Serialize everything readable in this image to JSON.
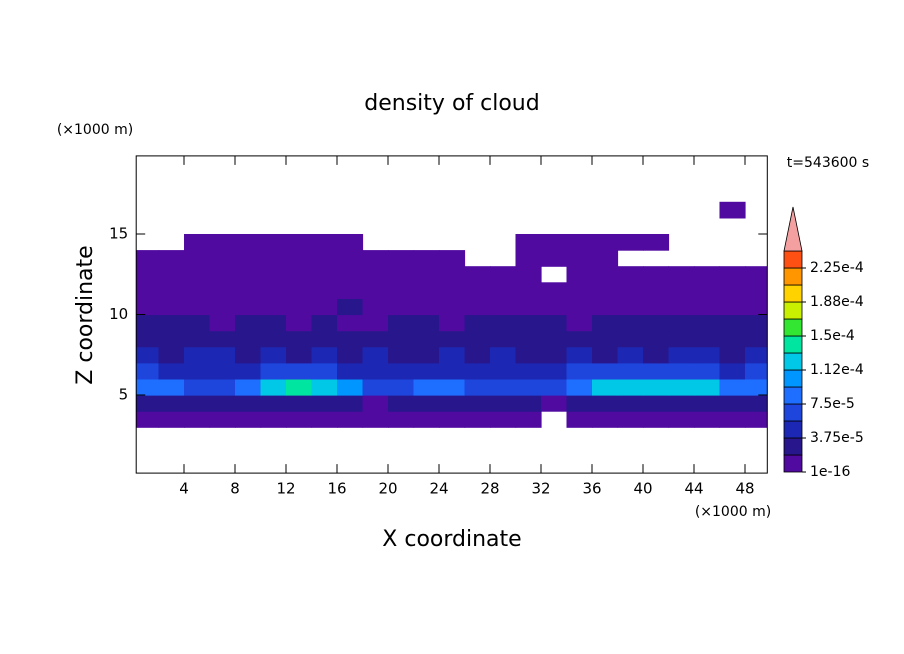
{
  "chart_data": {
    "type": "contour",
    "title": "density of cloud",
    "x_label": "X coordinate",
    "y_label": "Z coordinate",
    "x_unit": "(×1000 m)",
    "y_unit": "(×1000 m)",
    "annotation": "t=543600 s",
    "xlim": [
      0.25,
      49.75
    ],
    "ylim": [
      0.15,
      19.85
    ],
    "xticks": [
      4,
      8,
      12,
      16,
      20,
      24,
      28,
      32,
      36,
      40,
      44,
      48
    ],
    "yticks": [
      5,
      10,
      15
    ],
    "x": [
      1,
      3,
      5,
      7,
      9,
      11,
      13,
      15,
      17,
      19,
      21,
      23,
      25,
      27,
      29,
      31,
      33,
      35,
      37,
      39,
      41,
      43,
      45,
      47,
      49
    ],
    "y": [
      3.5,
      4.5,
      5.5,
      6.5,
      7.5,
      8.5,
      9.5,
      10.5,
      11.5,
      12.5,
      13.5,
      14.5,
      15.5,
      16.5
    ],
    "z": [
      [
        1e-05,
        1e-05,
        1e-05,
        1e-05,
        1e-05,
        1e-05,
        1e-05,
        1e-05,
        1e-05,
        1e-05,
        1e-05,
        1e-05,
        1e-05,
        1e-05,
        1e-05,
        1e-05,
        null,
        1e-05,
        1e-05,
        1e-05,
        1e-05,
        1e-05,
        1e-05,
        1e-05,
        1e-05
      ],
      [
        3e-05,
        3e-05,
        3e-05,
        2.5e-05,
        3e-05,
        3e-05,
        3e-05,
        3e-05,
        2.5e-05,
        1.5e-05,
        2.5e-05,
        3e-05,
        3e-05,
        3e-05,
        2.5e-05,
        2e-05,
        1.5e-05,
        3e-05,
        3e-05,
        3e-05,
        3e-05,
        3e-05,
        3e-05,
        3e-05,
        3e-05
      ],
      [
        8e-05,
        8e-05,
        7e-05,
        7e-05,
        8e-05,
        0.00012,
        0.00014,
        0.00012,
        0.0001,
        7e-05,
        7e-05,
        8e-05,
        8.5e-05,
        7e-05,
        7e-05,
        7e-05,
        6e-05,
        9e-05,
        0.000115,
        0.00012,
        0.000115,
        0.000115,
        0.00012,
        9e-05,
        8e-05
      ],
      [
        6e-05,
        5e-05,
        5e-05,
        5e-05,
        5e-05,
        6e-05,
        6e-05,
        6e-05,
        5e-05,
        5e-05,
        5e-05,
        5e-05,
        5e-05,
        5e-05,
        5e-05,
        5e-05,
        5e-05,
        6e-05,
        6e-05,
        6e-05,
        6e-05,
        6e-05,
        6e-05,
        5e-05,
        6e-05
      ],
      [
        4e-05,
        3e-05,
        4e-05,
        4e-05,
        3e-05,
        4e-05,
        3e-05,
        4e-05,
        3e-05,
        4e-05,
        3e-05,
        3e-05,
        4e-05,
        3e-05,
        4e-05,
        3e-05,
        3e-05,
        4e-05,
        3e-05,
        4e-05,
        3e-05,
        4e-05,
        4e-05,
        3e-05,
        4e-05
      ],
      [
        3e-05,
        2.5e-05,
        3e-05,
        3e-05,
        2.5e-05,
        3e-05,
        2.5e-05,
        3e-05,
        2.5e-05,
        2.5e-05,
        3e-05,
        2.5e-05,
        2.5e-05,
        3e-05,
        2.5e-05,
        2.5e-05,
        2.5e-05,
        3e-05,
        2.5e-05,
        3e-05,
        3e-05,
        2.5e-05,
        3e-05,
        3e-05,
        3e-05
      ],
      [
        2.5e-05,
        2e-05,
        2.5e-05,
        1.5e-05,
        2e-05,
        2e-05,
        1.5e-05,
        2.5e-05,
        1.5e-05,
        1.5e-05,
        2.5e-05,
        2e-05,
        1.5e-05,
        2e-05,
        2.5e-05,
        2e-05,
        2e-05,
        1.5e-05,
        2e-05,
        2.5e-05,
        2e-05,
        2e-05,
        2.5e-05,
        2e-05,
        2.5e-05
      ],
      [
        1.5e-05,
        1.5e-05,
        1.5e-05,
        1e-05,
        1.5e-05,
        1.5e-05,
        1e-05,
        1.5e-05,
        2e-05,
        1.5e-05,
        1e-05,
        1.5e-05,
        1.5e-05,
        1e-05,
        1.5e-05,
        1e-05,
        1.5e-05,
        1e-05,
        1e-05,
        1.5e-05,
        1e-05,
        1e-05,
        1.5e-05,
        1e-05,
        1.5e-05
      ],
      [
        1e-05,
        1e-05,
        1e-05,
        1e-05,
        1e-05,
        1e-05,
        1e-05,
        1e-05,
        1e-05,
        1e-05,
        1e-05,
        1e-05,
        1e-05,
        1e-05,
        1e-05,
        1e-05,
        1e-05,
        1e-05,
        1e-05,
        1e-05,
        1e-05,
        1e-05,
        1e-05,
        1e-05,
        1e-05
      ],
      [
        1e-05,
        1e-05,
        1e-05,
        1e-05,
        1e-05,
        1e-05,
        1e-05,
        1e-05,
        1e-05,
        1e-05,
        1e-05,
        1e-05,
        1e-05,
        1e-05,
        1e-05,
        1e-05,
        null,
        1e-05,
        1e-05,
        1e-05,
        1e-05,
        1e-05,
        1e-05,
        1e-05,
        1e-05
      ],
      [
        1e-05,
        1e-05,
        1e-05,
        1e-05,
        1e-05,
        1e-05,
        1e-05,
        1e-05,
        1e-05,
        1e-05,
        1e-05,
        1e-05,
        1e-05,
        null,
        null,
        1e-05,
        1e-05,
        1e-05,
        1e-05,
        null,
        null,
        null,
        null,
        null,
        null
      ],
      [
        null,
        null,
        1e-05,
        1e-05,
        1e-05,
        1e-05,
        1e-05,
        1e-05,
        1e-05,
        null,
        null,
        null,
        null,
        null,
        null,
        1e-05,
        1e-05,
        1e-05,
        1e-05,
        1e-05,
        1e-05,
        null,
        null,
        null,
        null
      ],
      [
        null,
        null,
        null,
        null,
        null,
        null,
        null,
        null,
        null,
        null,
        null,
        null,
        null,
        null,
        null,
        null,
        null,
        null,
        null,
        null,
        null,
        null,
        null,
        null,
        null
      ],
      [
        null,
        null,
        null,
        null,
        null,
        null,
        null,
        null,
        null,
        null,
        null,
        null,
        null,
        null,
        null,
        null,
        null,
        null,
        null,
        null,
        null,
        null,
        null,
        1e-05,
        null
      ]
    ],
    "colorbar": {
      "levels": [
        1e-16,
        1.875e-05,
        3.75e-05,
        5.625e-05,
        7.5e-05,
        9.375e-05,
        0.0001125,
        0.00013125,
        0.00015,
        0.00016875,
        0.0001875,
        0.00020625,
        0.000225,
        0.00024375
      ],
      "colors": [
        "#500aa0",
        "#28168c",
        "#1c28b4",
        "#1e46dc",
        "#1e6eff",
        "#0096ff",
        "#00c8e6",
        "#00e6a0",
        "#32e632",
        "#c8f000",
        "#ffd200",
        "#ff9600",
        "#ff5014"
      ],
      "extend_color": "#f5a0a0",
      "ticks": [
        {
          "value": 1e-16,
          "label": "1e-16"
        },
        {
          "value": 3.75e-05,
          "label": "3.75e-5"
        },
        {
          "value": 7.5e-05,
          "label": "7.5e-5"
        },
        {
          "value": 0.0001125,
          "label": "1.12e-4"
        },
        {
          "value": 0.00015,
          "label": "1.5e-4"
        },
        {
          "value": 0.0001875,
          "label": "1.88e-4"
        },
        {
          "value": 0.000225,
          "label": "2.25e-4"
        }
      ]
    }
  }
}
